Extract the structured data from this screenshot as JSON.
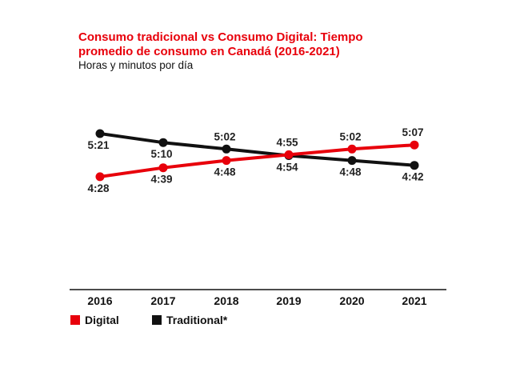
{
  "chart_data": {
    "type": "line",
    "title": "Consumo tradicional vs Consumo Digital: Tiempo promedio de consumo en Canadá (2016-2021)",
    "subtitle": "Horas y minutos por día",
    "categories": [
      "2016",
      "2017",
      "2018",
      "2019",
      "2020",
      "2021"
    ],
    "series": [
      {
        "name": "Digital",
        "color": "#e8000b",
        "values": [
          268,
          279,
          288,
          295,
          302,
          307
        ],
        "labels": [
          "4:28",
          "4:39",
          "4:48",
          "4:55",
          "5:02",
          "5:07"
        ]
      },
      {
        "name": "Traditional*",
        "color": "#111111",
        "values": [
          321,
          310,
          302,
          294,
          288,
          282
        ],
        "labels": [
          "5:21",
          "5:10",
          "5:02",
          "4:54",
          "4:48",
          "4:42"
        ]
      }
    ],
    "y_unit": "minutes per day",
    "grid": false,
    "legend_position": "bottom-left"
  }
}
